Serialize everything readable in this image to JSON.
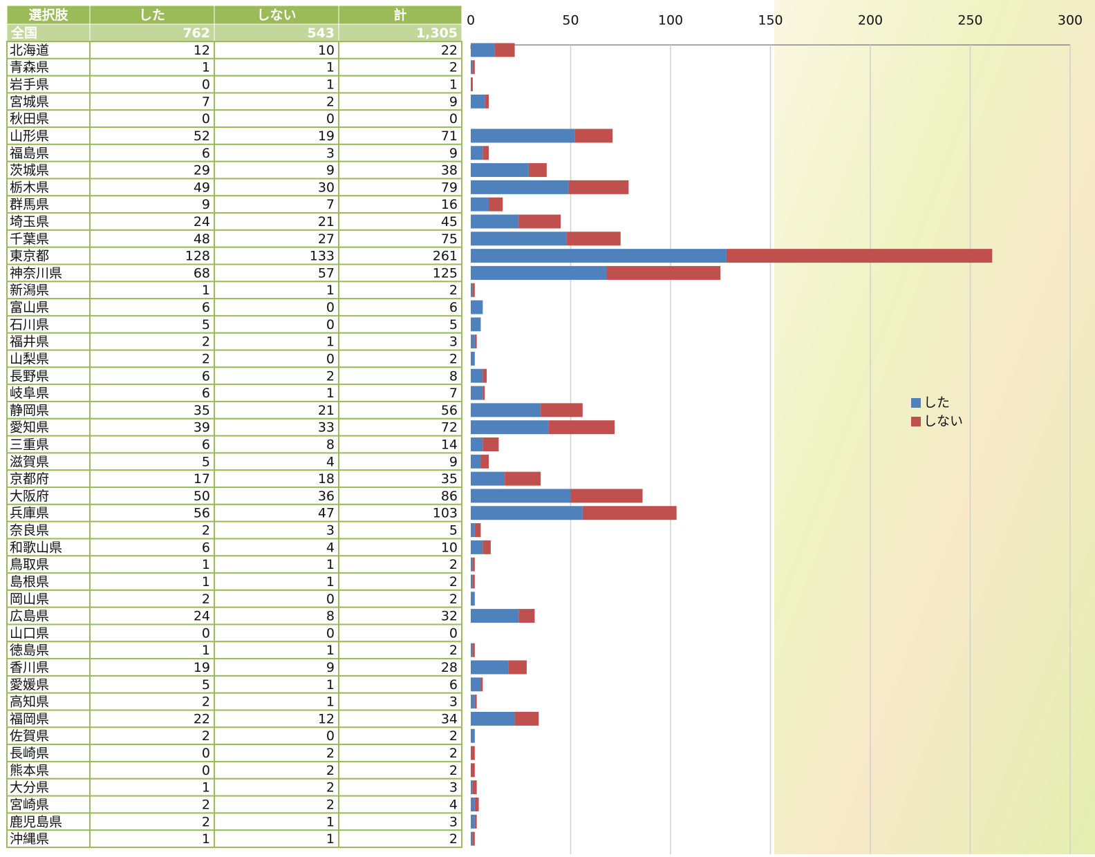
{
  "table": {
    "header": [
      "選択肢",
      "した",
      "しない",
      "計"
    ],
    "national": [
      "全国",
      "762",
      "543",
      "1,305"
    ],
    "totals": [
      22,
      2,
      1,
      9,
      0,
      71,
      9,
      38,
      79,
      16,
      45,
      75,
      261,
      125,
      2,
      6,
      5,
      3,
      2,
      8,
      7,
      56,
      72,
      14,
      9,
      35,
      86,
      103,
      5,
      10,
      2,
      2,
      2,
      32,
      0,
      2,
      28,
      6,
      3,
      34,
      2,
      2,
      2,
      3,
      4,
      3,
      2
    ]
  },
  "chart_data": {
    "type": "bar",
    "orientation": "horizontal",
    "stacked": true,
    "grid": true,
    "legend": "right",
    "categories": [
      "北海道",
      "青森県",
      "岩手県",
      "宮城県",
      "秋田県",
      "山形県",
      "福島県",
      "茨城県",
      "栃木県",
      "群馬県",
      "埼玉県",
      "千葉県",
      "東京都",
      "神奈川県",
      "新潟県",
      "富山県",
      "石川県",
      "福井県",
      "山梨県",
      "長野県",
      "岐阜県",
      "静岡県",
      "愛知県",
      "三重県",
      "滋賀県",
      "京都府",
      "大阪府",
      "兵庫県",
      "奈良県",
      "和歌山県",
      "鳥取県",
      "島根県",
      "岡山県",
      "広島県",
      "山口県",
      "徳島県",
      "香川県",
      "愛媛県",
      "高知県",
      "福岡県",
      "佐賀県",
      "長崎県",
      "熊本県",
      "大分県",
      "宮崎県",
      "鹿児島県",
      "沖縄県"
    ],
    "series": [
      {
        "name": "した",
        "color": "#4f81bd",
        "values": [
          12,
          1,
          0,
          7,
          0,
          52,
          6,
          29,
          49,
          9,
          24,
          48,
          128,
          68,
          1,
          6,
          5,
          2,
          2,
          6,
          6,
          35,
          39,
          6,
          5,
          17,
          50,
          56,
          2,
          6,
          1,
          1,
          2,
          24,
          0,
          1,
          19,
          5,
          2,
          22,
          2,
          0,
          0,
          1,
          2,
          2,
          1
        ]
      },
      {
        "name": "しない",
        "color": "#c0504d",
        "values": [
          10,
          1,
          1,
          2,
          0,
          19,
          3,
          9,
          30,
          7,
          21,
          27,
          133,
          57,
          1,
          0,
          0,
          1,
          0,
          2,
          1,
          21,
          33,
          8,
          4,
          18,
          36,
          47,
          3,
          4,
          1,
          1,
          0,
          8,
          0,
          1,
          9,
          1,
          1,
          12,
          0,
          2,
          2,
          2,
          2,
          1,
          1
        ]
      }
    ],
    "xlim": [
      0,
      300
    ],
    "xticks": [
      0,
      50,
      100,
      150,
      200,
      250,
      300
    ]
  }
}
